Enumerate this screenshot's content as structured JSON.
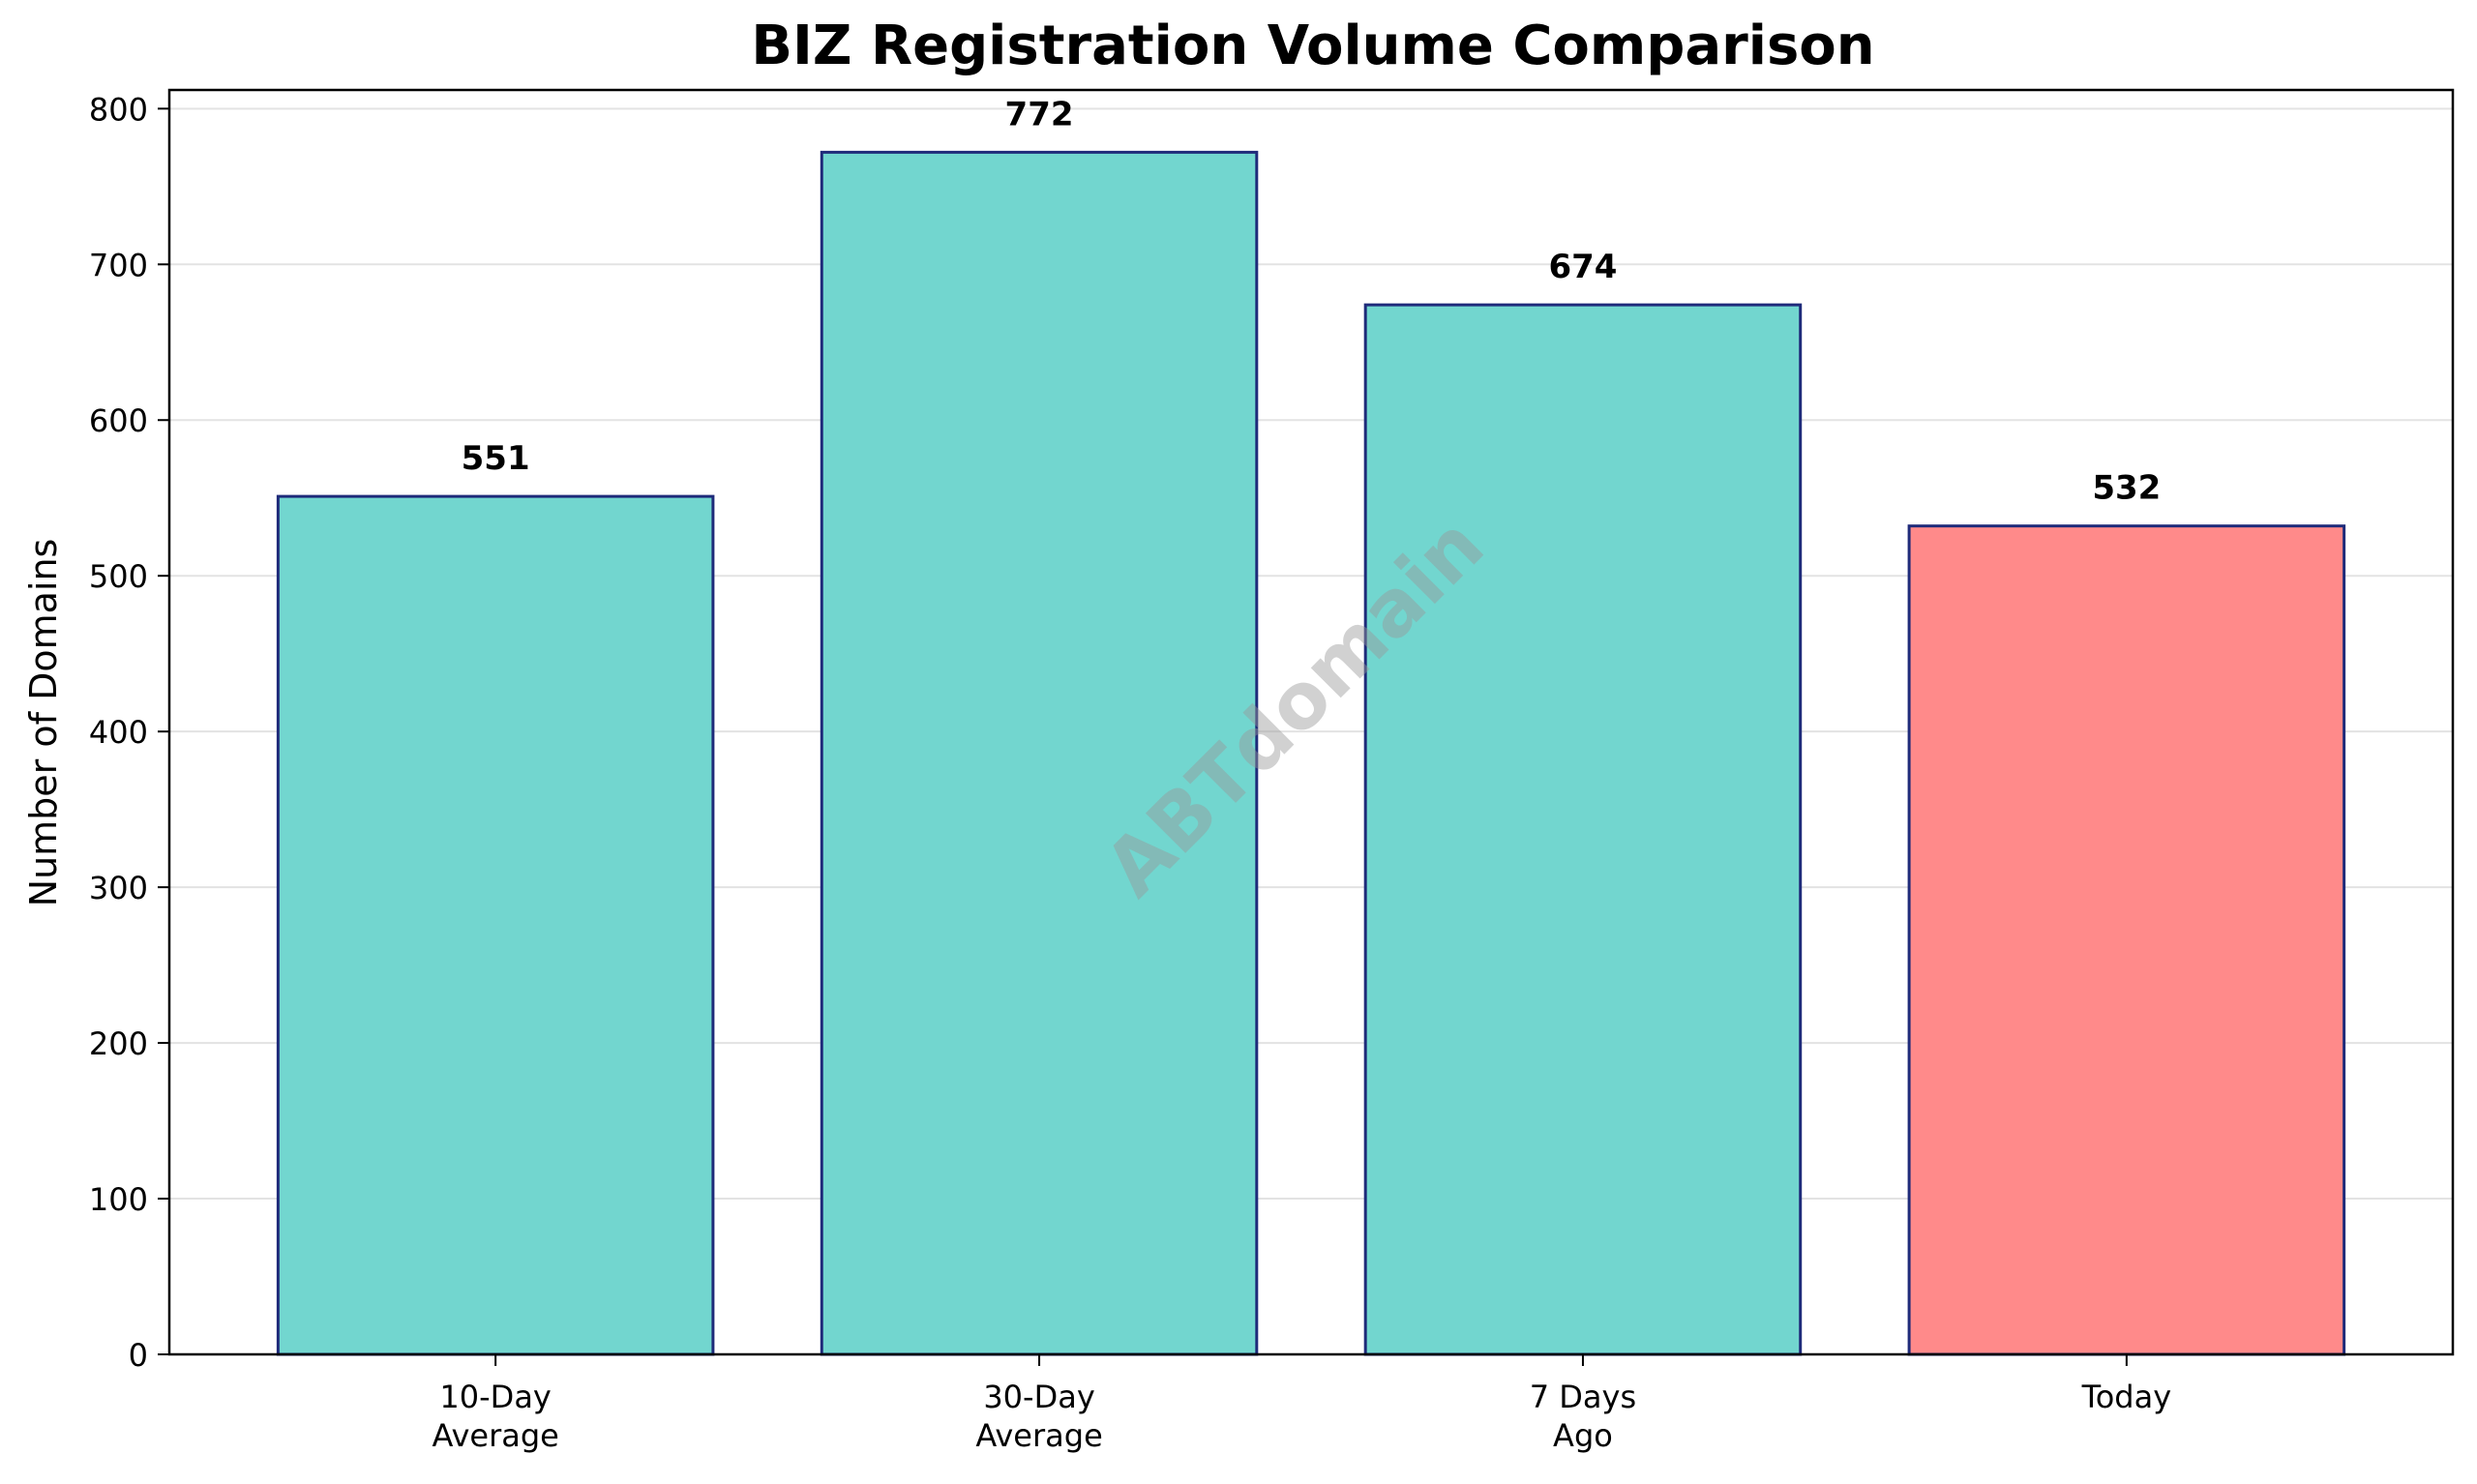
{
  "chart_data": {
    "type": "bar",
    "title": "BIZ Registration Volume Comparison",
    "xlabel": "",
    "ylabel": "Number of Domains",
    "categories": [
      [
        "10-Day",
        "Average"
      ],
      [
        "30-Day",
        "Average"
      ],
      [
        "7 Days",
        "Ago"
      ],
      [
        "Today"
      ]
    ],
    "values": [
      551,
      772,
      674,
      532
    ],
    "data_labels": [
      "551",
      "772",
      "674",
      "532"
    ],
    "bar_colors": [
      "#72d6cf",
      "#72d6cf",
      "#72d6cf",
      "#ff8a8a"
    ],
    "bar_edge_color": "#1f2b7a",
    "ylim": [
      0,
      812
    ],
    "yticks": [
      0,
      100,
      200,
      300,
      400,
      500,
      600,
      700,
      800
    ],
    "grid": "horizontal",
    "legend": "none",
    "watermark": "ABTdomain"
  }
}
